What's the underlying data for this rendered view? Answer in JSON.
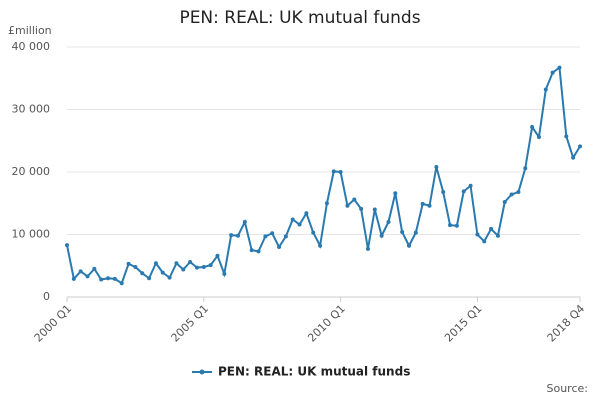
{
  "chart_data": {
    "type": "line",
    "title": "PEN: REAL: UK mutual funds",
    "y_label": "£million",
    "source": "Source:",
    "categories": [
      "2000 Q1",
      null,
      null,
      null,
      null,
      null,
      null,
      null,
      null,
      null,
      null,
      null,
      null,
      null,
      null,
      null,
      null,
      null,
      null,
      null,
      "2005 Q1",
      null,
      null,
      null,
      null,
      null,
      null,
      null,
      null,
      null,
      null,
      null,
      null,
      null,
      null,
      null,
      null,
      null,
      null,
      null,
      "2010 Q1",
      null,
      null,
      null,
      null,
      null,
      null,
      null,
      null,
      null,
      null,
      null,
      null,
      null,
      null,
      null,
      null,
      null,
      null,
      null,
      "2015 Q1",
      null,
      null,
      null,
      null,
      null,
      null,
      null,
      null,
      null,
      null,
      null,
      null,
      null,
      null,
      "2018 Q4"
    ],
    "series": [
      {
        "name": "PEN: REAL: UK mutual funds",
        "color": "#2a7ab0",
        "values": [
          8300,
          2900,
          4100,
          3300,
          4500,
          2800,
          3000,
          2900,
          2200,
          5300,
          4800,
          3800,
          3000,
          5400,
          3900,
          3100,
          5400,
          4400,
          5600,
          4700,
          4800,
          5100,
          6600,
          3700,
          9900,
          9800,
          12000,
          7500,
          7300,
          9700,
          10200,
          8000,
          9700,
          12400,
          11600,
          13400,
          10300,
          8200,
          15000,
          20100,
          20000,
          14600,
          15600,
          14100,
          7700,
          14000,
          9800,
          12000,
          16600,
          10400,
          8200,
          10300,
          14900,
          14600,
          20800,
          16800,
          11500,
          11400,
          16900,
          17800,
          10000,
          8900,
          10900,
          9800,
          15200,
          16400,
          16800,
          20600,
          27200,
          25600,
          33200,
          35900,
          36700,
          25700,
          22300,
          24100
        ]
      }
    ],
    "ylim": [
      0,
      40000
    ],
    "yticks": [
      0,
      {
        "value": 10000,
        "label": "10 000"
      },
      {
        "value": 20000,
        "label": "20 000"
      },
      {
        "value": 30000,
        "label": "30 000"
      },
      {
        "value": 40000,
        "label": "40 000"
      }
    ],
    "grid": true
  }
}
